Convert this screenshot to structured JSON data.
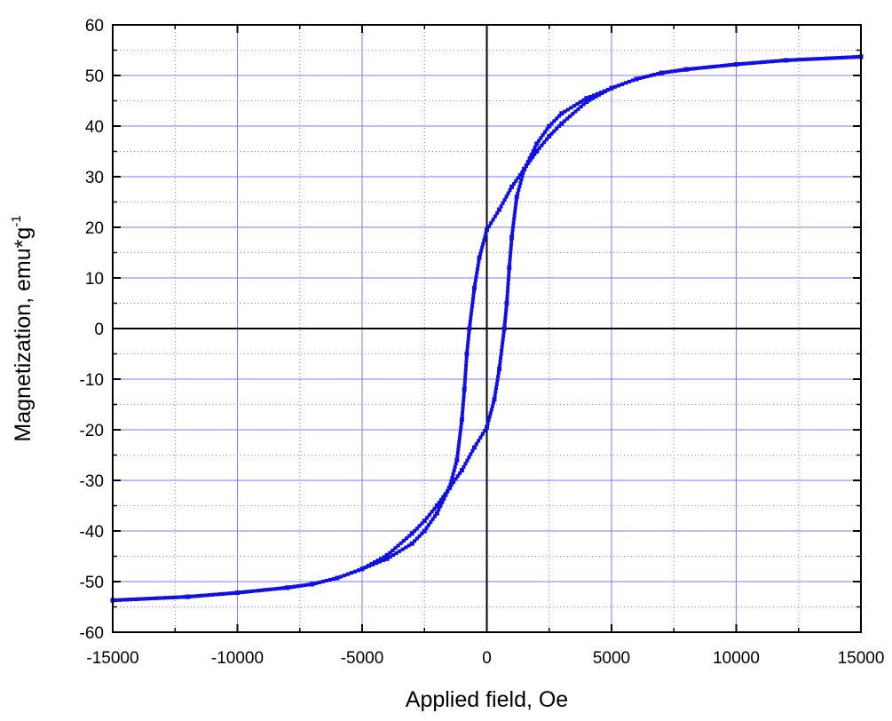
{
  "chart_data": {
    "type": "scatter",
    "title": "",
    "xlabel": "Applied field, Oe",
    "ylabel_main": "Magnetization, emu*g",
    "ylabel_sup": "-1",
    "xlim": [
      -15000,
      15000
    ],
    "ylim": [
      -60,
      60
    ],
    "x_ticks": [
      -15000,
      -10000,
      -5000,
      0,
      5000,
      10000,
      15000
    ],
    "y_ticks": [
      -60,
      -50,
      -40,
      -30,
      -20,
      -10,
      0,
      10,
      20,
      30,
      40,
      50,
      60
    ],
    "grid": true,
    "legend": "none",
    "colors": {
      "series": "#1010e6",
      "grid": "#7a7aff",
      "axis": "#000000"
    },
    "series": [
      {
        "branch": "descending",
        "x": [
          15000,
          12000,
          10000,
          8000,
          7000,
          6000,
          5000,
          4000,
          3000,
          2500,
          2000,
          1500,
          1000,
          500,
          0,
          -300,
          -500,
          -700,
          -800,
          -900,
          -1000,
          -1200,
          -1500,
          -2000,
          -2500,
          -3000,
          -4000,
          -5000,
          -6000,
          -7000,
          -8000,
          -10000,
          -12000,
          -15000
        ],
        "y": [
          53.7,
          53.0,
          52.2,
          51.2,
          50.5,
          49.3,
          47.5,
          44.8,
          40.5,
          38.0,
          35.0,
          31.5,
          28.0,
          23.5,
          19.5,
          14.0,
          8.0,
          0.0,
          -5.0,
          -12.0,
          -18.0,
          -26.0,
          -31.5,
          -36.5,
          -40.0,
          -42.5,
          -45.5,
          -47.5,
          -49.3,
          -50.5,
          -51.2,
          -52.2,
          -53.0,
          -53.7
        ]
      },
      {
        "branch": "ascending",
        "x": [
          -15000,
          -12000,
          -10000,
          -8000,
          -7000,
          -6000,
          -5000,
          -4000,
          -3000,
          -2500,
          -2000,
          -1500,
          -1000,
          -500,
          0,
          300,
          500,
          700,
          800,
          900,
          1000,
          1200,
          1500,
          2000,
          2500,
          3000,
          4000,
          5000,
          6000,
          7000,
          8000,
          10000,
          12000,
          15000
        ],
        "y": [
          -53.7,
          -53.0,
          -52.2,
          -51.2,
          -50.5,
          -49.3,
          -47.5,
          -44.8,
          -40.5,
          -38.0,
          -35.0,
          -31.5,
          -28.0,
          -23.5,
          -19.5,
          -14.0,
          -8.0,
          0.0,
          5.0,
          12.0,
          18.0,
          26.0,
          31.5,
          36.5,
          40.0,
          42.5,
          45.5,
          47.5,
          49.3,
          50.5,
          51.2,
          52.2,
          53.0,
          53.7
        ]
      }
    ]
  }
}
